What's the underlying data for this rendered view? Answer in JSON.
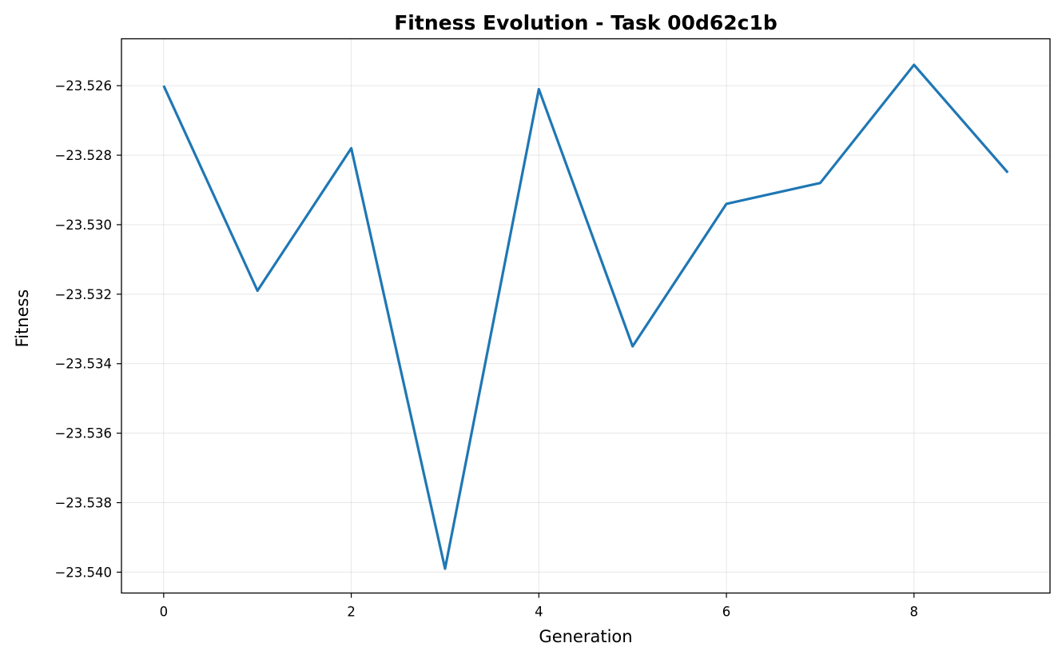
{
  "chart_data": {
    "type": "line",
    "title": "Fitness Evolution - Task 00d62c1b",
    "xlabel": "Generation",
    "ylabel": "Fitness",
    "x": [
      0,
      1,
      2,
      3,
      4,
      5,
      6,
      7,
      8,
      9
    ],
    "series": [
      {
        "values": [
          -23.526,
          -23.5319,
          -23.5278,
          -23.5399,
          -23.5261,
          -23.5335,
          -23.5294,
          -23.5288,
          -23.5254,
          -23.5285
        ],
        "color": "#1f77b4"
      }
    ],
    "xlim": [
      -0.45,
      9.45
    ],
    "ylim": [
      -23.5406,
      -23.52465
    ],
    "x_ticks": [
      0,
      2,
      4,
      6,
      8
    ],
    "x_tick_labels": [
      "0",
      "2",
      "4",
      "6",
      "8"
    ],
    "y_ticks": [
      -23.526,
      -23.528,
      -23.53,
      -23.532,
      -23.534,
      -23.536,
      -23.538,
      -23.54
    ],
    "y_tick_labels": [
      "−23.526",
      "−23.528",
      "−23.530",
      "−23.532",
      "−23.534",
      "−23.536",
      "−23.538",
      "−23.540"
    ],
    "grid": true,
    "legend": "none"
  }
}
